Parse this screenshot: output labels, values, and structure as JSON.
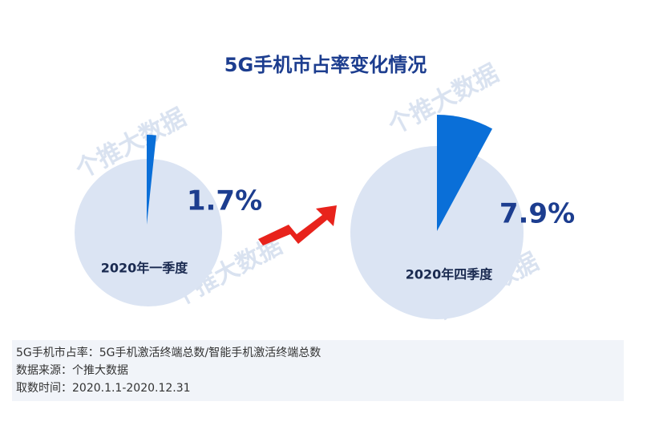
{
  "title": "5G手机市占率变化情况",
  "watermark": "个推大数据",
  "chart_data": [
    {
      "type": "pie",
      "label": "2020年一季度",
      "values": [
        1.7
      ],
      "value_labels": [
        "1.7%"
      ],
      "color": "#0a6fd8",
      "background": "#dbe4f3"
    },
    {
      "type": "pie",
      "label": "2020年四季度",
      "values": [
        7.9
      ],
      "value_labels": [
        "7.9%"
      ],
      "color": "#0a6fd8",
      "background": "#dbe4f3"
    }
  ],
  "notes": [
    "5G手机市占率：5G手机激活终端总数/智能手机激活终端总数",
    "数据来源：个推大数据",
    "取数时间：2020.1.1-2020.12.31"
  ]
}
